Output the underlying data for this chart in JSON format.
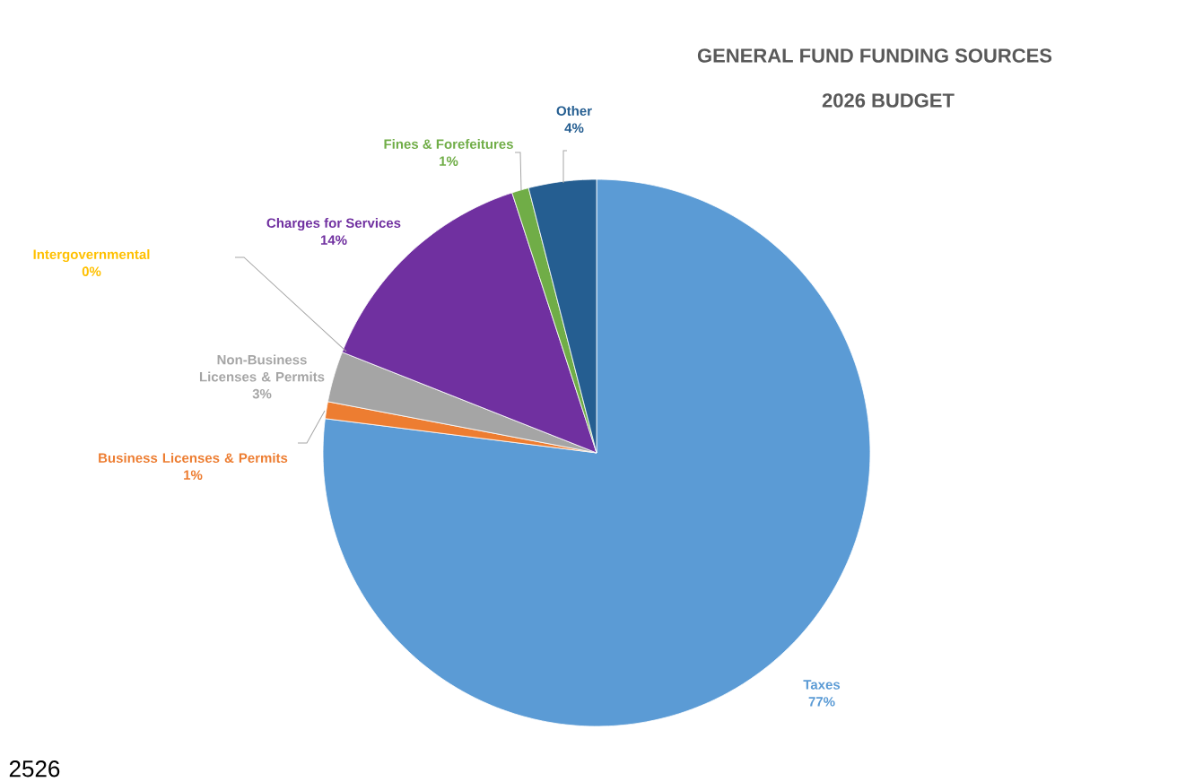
{
  "chart_data": {
    "type": "pie",
    "title": "GENERAL FUND FUNDING SOURCES",
    "subtitle": "2026 BUDGET",
    "categories": [
      "Taxes",
      "Business Licenses & Permits",
      "Non-Business Licenses & Permits",
      "Intergovernmental",
      "Charges for Services",
      "Fines & Forefeitures",
      "Other"
    ],
    "values": [
      77,
      1,
      3,
      0,
      14,
      1,
      4
    ],
    "value_labels": [
      "77%",
      "1%",
      "3%",
      "0%",
      "14%",
      "1%",
      "4%"
    ],
    "colors": [
      "#5b9bd5",
      "#ed7d31",
      "#a5a5a5",
      "#ffc000",
      "#7030a0",
      "#70ad47",
      "#255e91"
    ],
    "annotations": [
      "2526"
    ]
  }
}
